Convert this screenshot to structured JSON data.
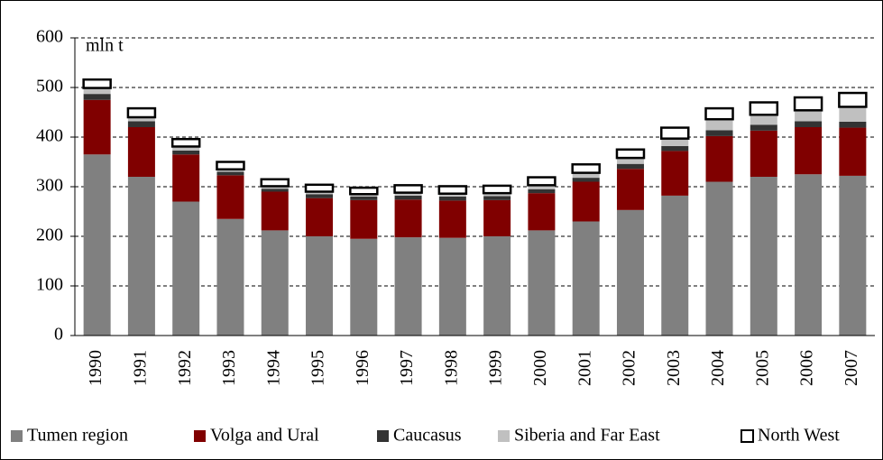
{
  "chart_data": {
    "type": "stacked_bar",
    "annotation": "mln t",
    "categories": [
      "1990",
      "1991",
      "1992",
      "1993",
      "1994",
      "1995",
      "1996",
      "1997",
      "1998",
      "1999",
      "2000",
      "2001",
      "2002",
      "2003",
      "2004",
      "2005",
      "2006",
      "2007"
    ],
    "series": [
      {
        "name": "Tumen region",
        "color": "#808080",
        "values": [
          365,
          320,
          270,
          235,
          212,
          200,
          195,
          198,
          197,
          200,
          212,
          230,
          253,
          282,
          310,
          320,
          325,
          322
        ]
      },
      {
        "name": "Volga and Ural",
        "color": "#800000",
        "values": [
          110,
          100,
          95,
          88,
          78,
          77,
          78,
          76,
          75,
          73,
          75,
          80,
          83,
          90,
          92,
          93,
          95,
          97
        ]
      },
      {
        "name": "Caucasus",
        "color": "#333333",
        "values": [
          12,
          12,
          8,
          7,
          6,
          8,
          7,
          8,
          8,
          8,
          8,
          8,
          10,
          10,
          12,
          12,
          12,
          12
        ]
      },
      {
        "name": "Siberia and Far East",
        "color": "#c0c0c0",
        "values": [
          12,
          8,
          8,
          5,
          5,
          5,
          5,
          6,
          6,
          6,
          8,
          10,
          12,
          15,
          22,
          20,
          22,
          30
        ]
      },
      {
        "name": "North West",
        "color": "#ffffff",
        "values": [
          17,
          18,
          15,
          15,
          14,
          14,
          13,
          15,
          15,
          15,
          16,
          17,
          17,
          22,
          22,
          25,
          26,
          28
        ]
      }
    ],
    "ylim": [
      0,
      600
    ],
    "yticks": [
      0,
      100,
      200,
      300,
      400,
      500,
      600
    ],
    "grid": true,
    "legend": "bottom"
  }
}
